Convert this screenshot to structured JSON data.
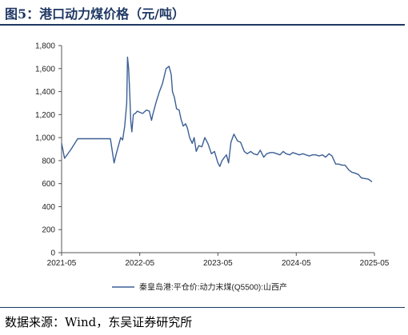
{
  "title": "图5：港口动力煤价格（元/吨）",
  "source": "数据来源：Wind，东吴证券研究所",
  "colors": {
    "line": "#3b5f95",
    "accent": "#1f3864"
  },
  "chart_data": {
    "type": "line",
    "title": "",
    "xlabel": "",
    "ylabel": "",
    "ylim": [
      0,
      1800
    ],
    "yticks": [
      0,
      200,
      400,
      600,
      800,
      1000,
      1200,
      1400,
      1600,
      1800
    ],
    "ytick_labels": [
      "0",
      "200",
      "400",
      "600",
      "800",
      "1,000",
      "1,200",
      "1,400",
      "1,600",
      "1,800"
    ],
    "xlim": [
      "2021-05",
      "2025-05"
    ],
    "xtick_labels": [
      "2021-05",
      "2022-05",
      "2023-05",
      "2024-05",
      "2025-05"
    ],
    "legend": "bottom",
    "series": [
      {
        "name": "秦皇岛港:平仓价:动力末煤(Q5500):山西产",
        "color": "#3b5f95",
        "x": [
          "2021-05-01",
          "2021-05-15",
          "2021-06-15",
          "2021-07-15",
          "2021-08-15",
          "2021-09-15",
          "2021-10-15",
          "2021-11-15",
          "2021-12-15",
          "2022-01-01",
          "2022-01-10",
          "2022-01-20",
          "2022-02-01",
          "2022-02-10",
          "2022-02-20",
          "2022-03-01",
          "2022-03-05",
          "2022-03-10",
          "2022-03-15",
          "2022-03-20",
          "2022-03-25",
          "2022-04-01",
          "2022-04-10",
          "2022-04-20",
          "2022-05-01",
          "2022-05-15",
          "2022-06-01",
          "2022-06-15",
          "2022-06-25",
          "2022-07-01",
          "2022-07-15",
          "2022-08-01",
          "2022-08-15",
          "2022-09-01",
          "2022-09-15",
          "2022-09-25",
          "2022-10-01",
          "2022-10-10",
          "2022-10-20",
          "2022-11-01",
          "2022-11-10",
          "2022-11-20",
          "2022-12-01",
          "2022-12-10",
          "2022-12-20",
          "2023-01-01",
          "2023-01-10",
          "2023-01-20",
          "2023-02-01",
          "2023-02-15",
          "2023-03-01",
          "2023-03-15",
          "2023-04-01",
          "2023-04-15",
          "2023-05-01",
          "2023-05-10",
          "2023-05-20",
          "2023-06-01",
          "2023-06-10",
          "2023-06-20",
          "2023-07-01",
          "2023-07-15",
          "2023-08-01",
          "2023-08-15",
          "2023-09-01",
          "2023-09-15",
          "2023-10-01",
          "2023-10-15",
          "2023-11-01",
          "2023-11-15",
          "2023-12-01",
          "2023-12-15",
          "2024-01-01",
          "2024-01-15",
          "2024-02-01",
          "2024-02-15",
          "2024-03-01",
          "2024-03-15",
          "2024-04-01",
          "2024-04-15",
          "2024-05-01",
          "2024-05-15",
          "2024-06-01",
          "2024-06-15",
          "2024-07-01",
          "2024-07-15",
          "2024-08-01",
          "2024-08-15",
          "2024-09-01",
          "2024-09-15",
          "2024-10-01",
          "2024-10-15",
          "2024-11-01",
          "2024-11-15",
          "2024-12-01",
          "2024-12-15",
          "2025-01-01",
          "2025-01-15",
          "2025-02-01",
          "2025-02-15",
          "2025-03-01",
          "2025-03-15",
          "2025-04-01",
          "2025-04-10",
          "2025-04-20"
        ],
        "y": [
          950,
          820,
          900,
          990,
          990,
          990,
          990,
          990,
          990,
          780,
          850,
          920,
          1000,
          980,
          1100,
          1300,
          1700,
          1600,
          1400,
          1150,
          1050,
          1200,
          1210,
          1230,
          1220,
          1210,
          1240,
          1230,
          1150,
          1200,
          1300,
          1400,
          1470,
          1600,
          1620,
          1550,
          1400,
          1350,
          1250,
          1240,
          1160,
          1100,
          1120,
          1080,
          1000,
          950,
          1000,
          880,
          930,
          920,
          1000,
          950,
          860,
          880,
          780,
          750,
          800,
          830,
          850,
          780,
          960,
          1030,
          970,
          960,
          880,
          860,
          880,
          860,
          850,
          890,
          830,
          860,
          870,
          870,
          860,
          850,
          880,
          860,
          850,
          870,
          860,
          850,
          860,
          850,
          840,
          850,
          850,
          840,
          850,
          830,
          860,
          840,
          770,
          770,
          760,
          760,
          720,
          700,
          690,
          680,
          650,
          645,
          640,
          630,
          615
        ]
      }
    ]
  }
}
